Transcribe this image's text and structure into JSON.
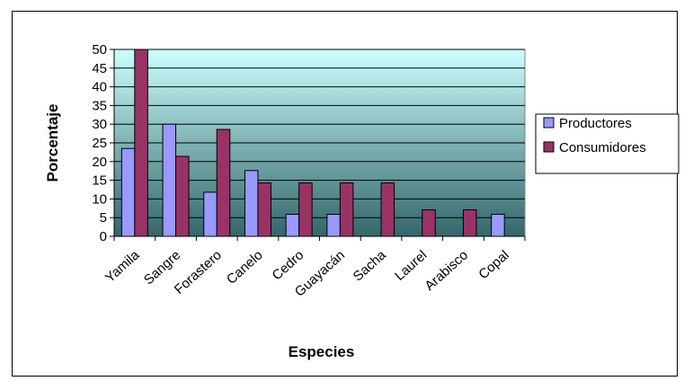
{
  "chart_data": {
    "type": "bar",
    "title": "",
    "xlabel": "Especies",
    "ylabel": "Porcentaje",
    "ylim": [
      0,
      50
    ],
    "yticks": [
      0,
      5,
      10,
      15,
      20,
      25,
      30,
      35,
      40,
      45,
      50
    ],
    "grid": "horizontal",
    "legend_position": "right",
    "categories": [
      "Yamila",
      "Sangre",
      "Forastero",
      "Canelo",
      "Cedro",
      "Guayacán",
      "Sacha",
      "Laurel",
      "Arabisco",
      "Copal"
    ],
    "series": [
      {
        "name": "Productores",
        "color": "#9999ff",
        "values": [
          23.5,
          30,
          11.8,
          17.6,
          5.9,
          5.9,
          0,
          0,
          0,
          5.9
        ]
      },
      {
        "name": "Consumidores",
        "color": "#993366",
        "values": [
          50,
          21.4,
          28.6,
          14.3,
          14.3,
          14.3,
          14.3,
          7.1,
          7.1,
          0
        ]
      }
    ],
    "plot_background": {
      "top": "#ccffff",
      "bottom": "#33666a"
    }
  }
}
